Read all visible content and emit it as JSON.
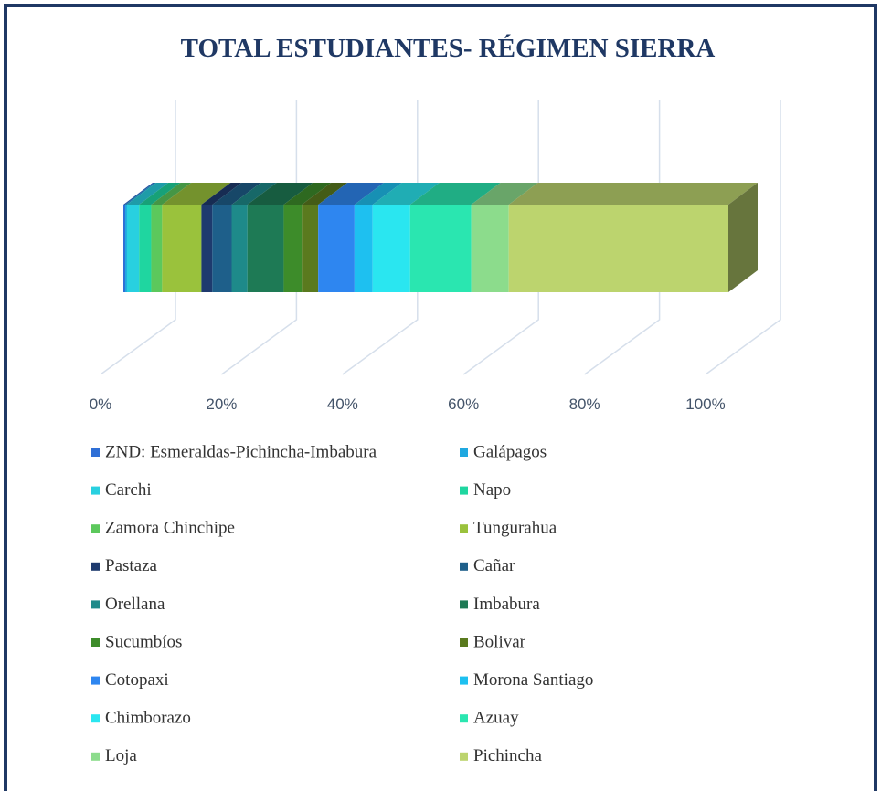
{
  "chart_data": {
    "type": "stacked-bar-3d",
    "title": "TOTAL ESTUDIANTES- RÉGIMEN SIERRA",
    "xlim": [
      0,
      100
    ],
    "xticks": [
      {
        "value": 0,
        "label": "0%"
      },
      {
        "value": 20,
        "label": "20%"
      },
      {
        "value": 40,
        "label": "40%"
      },
      {
        "value": 60,
        "label": "60%"
      },
      {
        "value": 80,
        "label": "80%"
      },
      {
        "value": 100,
        "label": "100%"
      }
    ],
    "grid": true,
    "series": [
      {
        "name": "ZND: Esmeraldas-Pichincha-Imbabura",
        "color": "#2f6fd6",
        "values": [
          0.3
        ]
      },
      {
        "name": "Galápagos",
        "color": "#1fa8e0",
        "values": [
          0.3
        ]
      },
      {
        "name": "Carchi",
        "color": "#28d0e0",
        "values": [
          2.0
        ]
      },
      {
        "name": "Napo",
        "color": "#1fd6a0",
        "values": [
          2.0
        ]
      },
      {
        "name": "Zamora Chinchipe",
        "color": "#5cc85c",
        "values": [
          1.8
        ]
      },
      {
        "name": "Tungurahua",
        "color": "#9ac23c",
        "values": [
          6.5
        ]
      },
      {
        "name": "Pastaza",
        "color": "#1e3a6e",
        "values": [
          1.8
        ]
      },
      {
        "name": "Cañar",
        "color": "#1e5f8a",
        "values": [
          3.2
        ]
      },
      {
        "name": "Orellana",
        "color": "#1e8a8a",
        "values": [
          2.6
        ]
      },
      {
        "name": "Imbabura",
        "color": "#1e7a55",
        "values": [
          6.0
        ]
      },
      {
        "name": "Sucumbíos",
        "color": "#3d8c2a",
        "values": [
          3.0
        ]
      },
      {
        "name": "Bolivar",
        "color": "#5a7a1e",
        "values": [
          2.7
        ]
      },
      {
        "name": "Cotopaxi",
        "color": "#2e86f0",
        "values": [
          6.0
        ]
      },
      {
        "name": "Morona Santiago",
        "color": "#1ec0f0",
        "values": [
          3.0
        ]
      },
      {
        "name": "Chimborazo",
        "color": "#2ae6f0",
        "values": [
          6.2
        ]
      },
      {
        "name": "Azuay",
        "color": "#2ae6b0",
        "values": [
          10.1
        ]
      },
      {
        "name": "Loja",
        "color": "#8cdc8c",
        "values": [
          6.2
        ]
      },
      {
        "name": "Pichincha",
        "color": "#bcd46e",
        "values": [
          36.3
        ]
      }
    ]
  }
}
